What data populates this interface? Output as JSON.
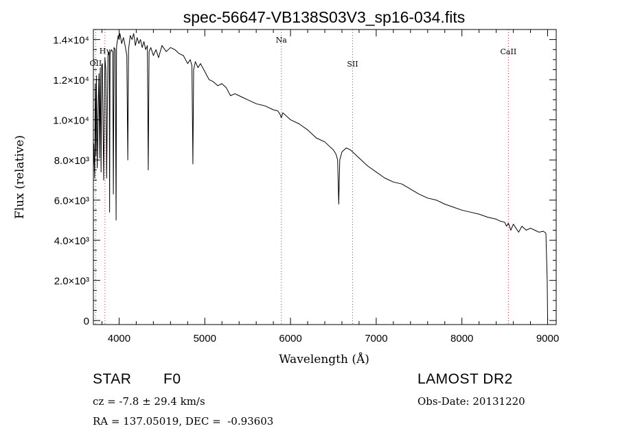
{
  "chart_data": {
    "type": "line",
    "title": "spec-56647-VB138S03V3_sp16-034.fits",
    "xlabel": "Wavelength (Å)",
    "ylabel": "Flux (relative)",
    "xlim": [
      3700,
      9100
    ],
    "ylim": [
      -200,
      14500
    ],
    "xticks": [
      {
        "value": 4000,
        "label": "4000"
      },
      {
        "value": 5000,
        "label": "5000"
      },
      {
        "value": 6000,
        "label": "6000"
      },
      {
        "value": 7000,
        "label": "7000"
      },
      {
        "value": 8000,
        "label": "8000"
      },
      {
        "value": 9000,
        "label": "9000"
      }
    ],
    "yticks": [
      {
        "value": 0,
        "label": "0"
      },
      {
        "value": 2000,
        "label": "2.0×10³"
      },
      {
        "value": 4000,
        "label": "4.0×10³"
      },
      {
        "value": 6000,
        "label": "6.0×10³"
      },
      {
        "value": 8000,
        "label": "8.0×10³"
      },
      {
        "value": 10000,
        "label": "1.0×10⁴"
      },
      {
        "value": 12000,
        "label": "1.2×10⁴"
      },
      {
        "value": 14000,
        "label": "1.4×10⁴"
      }
    ],
    "lines": [
      {
        "label": "OII",
        "wavelength": 3727
      },
      {
        "label": "Hγ",
        "wavelength": 3835
      },
      {
        "label": "Na",
        "wavelength": 5893
      },
      {
        "label": "SII",
        "wavelength": 6724
      },
      {
        "label": "CaII",
        "wavelength": 8542
      }
    ],
    "line_color": "#d62728",
    "series": [
      {
        "color": "#000000",
        "x": [
          3700,
          3705,
          3715,
          3722,
          3730,
          3735,
          3745,
          3755,
          3765,
          3772,
          3780,
          3790,
          3797,
          3805,
          3820,
          3835,
          3845,
          3855,
          3870,
          3885,
          3889,
          3895,
          3910,
          3925,
          3933,
          3940,
          3955,
          3965,
          3970,
          3975,
          3990,
          4000,
          4010,
          4030,
          4050,
          4070,
          4090,
          4101,
          4110,
          4130,
          4150,
          4170,
          4190,
          4210,
          4230,
          4250,
          4270,
          4290,
          4310,
          4330,
          4340,
          4350,
          4370,
          4400,
          4430,
          4460,
          4500,
          4550,
          4600,
          4650,
          4700,
          4750,
          4800,
          4830,
          4850,
          4861,
          4870,
          4890,
          4920,
          4950,
          5000,
          5050,
          5100,
          5150,
          5200,
          5250,
          5300,
          5350,
          5400,
          5450,
          5500,
          5600,
          5700,
          5800,
          5850,
          5875,
          5893,
          5910,
          5950,
          6000,
          6100,
          6200,
          6300,
          6400,
          6450,
          6500,
          6530,
          6550,
          6563,
          6575,
          6600,
          6650,
          6700,
          6750,
          6800,
          6900,
          7000,
          7100,
          7200,
          7300,
          7400,
          7500,
          7600,
          7700,
          7800,
          7900,
          8000,
          8100,
          8200,
          8300,
          8400,
          8450,
          8498,
          8520,
          8542,
          8570,
          8600,
          8662,
          8700,
          8750,
          8800,
          8850,
          8900,
          8950,
          8980,
          8995,
          9000,
          9003
        ],
        "y": [
          7500,
          8800,
          7100,
          11800,
          8200,
          12200,
          7600,
          10500,
          12300,
          8100,
          12600,
          7400,
          12700,
          12800,
          7000,
          13100,
          12500,
          7100,
          13200,
          13400,
          5400,
          13300,
          13500,
          13400,
          6300,
          13600,
          13500,
          5000,
          13600,
          13800,
          14200,
          14000,
          14300,
          13800,
          14100,
          13700,
          13200,
          8000,
          13500,
          14200,
          14000,
          14300,
          13700,
          14100,
          13800,
          14000,
          13600,
          13900,
          13500,
          13700,
          7500,
          13400,
          13600,
          13200,
          13500,
          13100,
          13700,
          13400,
          13600,
          13500,
          13300,
          13200,
          12800,
          13000,
          12700,
          7800,
          12500,
          12900,
          12600,
          12800,
          12400,
          12000,
          11900,
          11700,
          11800,
          11600,
          11200,
          11300,
          11200,
          11100,
          11000,
          10800,
          10700,
          10500,
          10450,
          10300,
          10100,
          10350,
          10200,
          10000,
          9800,
          9500,
          9100,
          8900,
          8700,
          8500,
          8300,
          8000,
          5800,
          8000,
          8400,
          8600,
          8500,
          8300,
          8100,
          7700,
          7400,
          7100,
          6900,
          6800,
          6550,
          6300,
          6100,
          6000,
          5800,
          5650,
          5500,
          5400,
          5300,
          5150,
          5050,
          4950,
          4900,
          4700,
          4850,
          4500,
          4800,
          4400,
          4700,
          4500,
          4600,
          4500,
          4400,
          4450,
          4350,
          2000,
          100,
          50
        ]
      }
    ],
    "grid": false
  },
  "info": {
    "object": "STAR",
    "subclass": "F0",
    "cz": "cz = -7.8 ± 29.4 km/s",
    "coords": "RA = 137.05019, DEC =  -0.93603",
    "survey": "LAMOST DR2",
    "obs_date": "Obs-Date: 20131220"
  }
}
